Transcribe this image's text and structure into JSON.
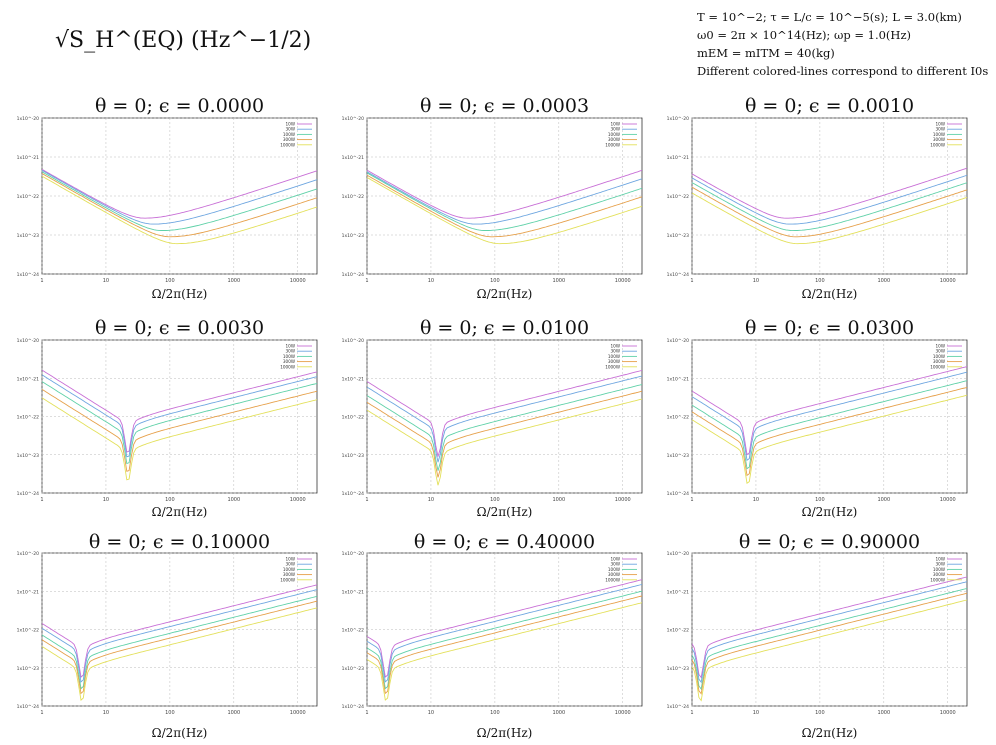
{
  "header": {
    "main_label": "√S_H^(EQ) (Hz^−1/2)",
    "parameters": [
      "T = 10^−2;   τ = L/c = 10^−5(s);   L = 3.0(km)",
      "ω0 = 2π × 10^14(Hz);   ωp = 1.0(Hz)",
      "mEM = mITM = 40(kg)",
      "Different colored-lines correspond to different I0s"
    ]
  },
  "colors": {
    "series": [
      "#c86fd6",
      "#6ea6e0",
      "#5fd1a8",
      "#e6a04a",
      "#e3e05a"
    ]
  },
  "chart_data": [
    {
      "type": "line",
      "title": "θ = 0; ϵ = 0.0000",
      "xlabel": "Ω/2π(Hz)",
      "ylabel": "",
      "xscale": "log",
      "yscale": "log",
      "xlim": [
        1,
        20000
      ],
      "ylim": [
        1e-24,
        1e-20
      ],
      "grid": true,
      "legend_position": "top-right",
      "x_ticks": [
        "1",
        "10",
        "100",
        "1000",
        "10000"
      ],
      "y_ticks": [
        "1x10^-24",
        "1x10^-23",
        "1x10^-22",
        "1x10^-21",
        "1x10^-20"
      ],
      "series": [
        {
          "name": "10W",
          "dip_x": 40,
          "min_y": 2.7e-23
        },
        {
          "name": "30W",
          "dip_x": 55,
          "min_y": 1.9e-23
        },
        {
          "name": "100W",
          "dip_x": 75,
          "min_y": 1.3e-23
        },
        {
          "name": "300W",
          "dip_x": 100,
          "min_y": 9e-24
        },
        {
          "name": "1000W",
          "dip_x": 130,
          "min_y": 6e-24
        }
      ]
    },
    {
      "type": "line",
      "title": "θ = 0; ϵ = 0.0003",
      "xlabel": "Ω/2π(Hz)",
      "ylabel": "",
      "xscale": "log",
      "yscale": "log",
      "xlim": [
        1,
        20000
      ],
      "ylim": [
        1e-24,
        1e-20
      ],
      "grid": true,
      "legend_position": "top-right",
      "x_ticks": [
        "1",
        "10",
        "100",
        "1000",
        "10000"
      ],
      "y_ticks": [
        "1x10^-24",
        "1x10^-23",
        "1x10^-22",
        "1x10^-21",
        "1x10^-20"
      ],
      "series": [
        {
          "name": "10W",
          "dip_x": 38,
          "min_y": 2.7e-23
        },
        {
          "name": "30W",
          "dip_x": 50,
          "min_y": 1.9e-23
        },
        {
          "name": "100W",
          "dip_x": 70,
          "min_y": 1.3e-23
        },
        {
          "name": "300W",
          "dip_x": 90,
          "min_y": 9e-24
        },
        {
          "name": "1000W",
          "dip_x": 120,
          "min_y": 6e-24
        }
      ]
    },
    {
      "type": "line",
      "title": "θ = 0; ϵ = 0.0010",
      "xlabel": "Ω/2π(Hz)",
      "ylabel": "",
      "xscale": "log",
      "yscale": "log",
      "xlim": [
        1,
        20000
      ],
      "ylim": [
        1e-24,
        1e-20
      ],
      "grid": true,
      "legend_position": "top-right",
      "x_ticks": [
        "1",
        "10",
        "100",
        "1000",
        "10000"
      ],
      "y_ticks": [
        "1x10^-24",
        "1x10^-23",
        "1x10^-22",
        "1x10^-21",
        "1x10^-20"
      ],
      "series": [
        {
          "name": "10W",
          "dip_x": 30,
          "min_y": 2.7e-23
        },
        {
          "name": "30W",
          "dip_x": 34,
          "min_y": 1.9e-23
        },
        {
          "name": "100W",
          "dip_x": 38,
          "min_y": 1.3e-23
        },
        {
          "name": "300W",
          "dip_x": 42,
          "min_y": 9e-24
        },
        {
          "name": "1000W",
          "dip_x": 45,
          "min_y": 6e-24
        }
      ]
    },
    {
      "type": "line",
      "title": "θ = 0; ϵ = 0.0030",
      "xlabel": "Ω/2π(Hz)",
      "ylabel": "",
      "xscale": "log",
      "yscale": "log",
      "xlim": [
        1,
        20000
      ],
      "ylim": [
        1e-24,
        1e-20
      ],
      "grid": true,
      "legend_position": "top-right",
      "x_ticks": [
        "1",
        "10",
        "100",
        "1000",
        "10000"
      ],
      "y_ticks": [
        "1x10^-24",
        "1x10^-23",
        "1x10^-22",
        "1x10^-21",
        "1x10^-20"
      ],
      "series": [
        {
          "name": "10W",
          "dip_x": 22,
          "min_y": 1.6e-23
        },
        {
          "name": "30W",
          "dip_x": 22,
          "min_y": 1.2e-23
        },
        {
          "name": "100W",
          "dip_x": 22,
          "min_y": 8e-24
        },
        {
          "name": "300W",
          "dip_x": 22,
          "min_y": 5e-24
        },
        {
          "name": "1000W",
          "dip_x": 22,
          "min_y": 3e-24
        }
      ]
    },
    {
      "type": "line",
      "title": "θ = 0; ϵ = 0.0100",
      "xlabel": "Ω/2π(Hz)",
      "ylabel": "",
      "xscale": "log",
      "yscale": "log",
      "xlim": [
        1,
        20000
      ],
      "ylim": [
        1e-24,
        1e-20
      ],
      "grid": true,
      "legend_position": "top-right",
      "x_ticks": [
        "1",
        "10",
        "100",
        "1000",
        "10000"
      ],
      "y_ticks": [
        "1x10^-24",
        "1x10^-23",
        "1x10^-22",
        "1x10^-21",
        "1x10^-20"
      ],
      "series": [
        {
          "name": "10W",
          "dip_x": 13,
          "min_y": 1.4e-23
        },
        {
          "name": "30W",
          "dip_x": 13,
          "min_y": 1e-23
        },
        {
          "name": "100W",
          "dip_x": 13,
          "min_y": 6e-24
        },
        {
          "name": "300W",
          "dip_x": 13,
          "min_y": 4e-24
        },
        {
          "name": "1000W",
          "dip_x": 13,
          "min_y": 2.5e-24
        }
      ]
    },
    {
      "type": "line",
      "title": "θ = 0; ϵ = 0.0300",
      "xlabel": "Ω/2π(Hz)",
      "ylabel": "",
      "xscale": "log",
      "yscale": "log",
      "xlim": [
        1,
        20000
      ],
      "ylim": [
        1e-24,
        1e-20
      ],
      "grid": true,
      "legend_position": "top-right",
      "x_ticks": [
        "1",
        "10",
        "100",
        "1000",
        "10000"
      ],
      "y_ticks": [
        "1x10^-24",
        "1x10^-23",
        "1x10^-22",
        "1x10^-21",
        "1x10^-20"
      ],
      "series": [
        {
          "name": "10W",
          "dip_x": 7.5,
          "min_y": 1.4e-23
        },
        {
          "name": "30W",
          "dip_x": 7.5,
          "min_y": 1e-23
        },
        {
          "name": "100W",
          "dip_x": 7.5,
          "min_y": 6e-24
        },
        {
          "name": "300W",
          "dip_x": 7.5,
          "min_y": 4e-24
        },
        {
          "name": "1000W",
          "dip_x": 7.5,
          "min_y": 2.5e-24
        }
      ]
    },
    {
      "type": "line",
      "title": "θ = 0; ϵ = 0.10000",
      "xlabel": "Ω/2π(Hz)",
      "ylabel": "",
      "xscale": "log",
      "yscale": "log",
      "xlim": [
        1,
        20000
      ],
      "ylim": [
        1e-24,
        1e-20
      ],
      "grid": true,
      "legend_position": "top-right",
      "x_ticks": [
        "1",
        "10",
        "100",
        "1000",
        "10000"
      ],
      "y_ticks": [
        "1x10^-24",
        "1x10^-23",
        "1x10^-22",
        "1x10^-21",
        "1x10^-20"
      ],
      "series": [
        {
          "name": "10W",
          "dip_x": 4.2,
          "min_y": 8e-24
        },
        {
          "name": "30W",
          "dip_x": 4.2,
          "min_y": 6e-24
        },
        {
          "name": "100W",
          "dip_x": 4.2,
          "min_y": 4e-24
        },
        {
          "name": "300W",
          "dip_x": 4.2,
          "min_y": 3e-24
        },
        {
          "name": "1000W",
          "dip_x": 4.2,
          "min_y": 2e-24
        }
      ]
    },
    {
      "type": "line",
      "title": "θ = 0; ϵ = 0.40000",
      "xlabel": "Ω/2π(Hz)",
      "ylabel": "",
      "xscale": "log",
      "yscale": "log",
      "xlim": [
        1,
        20000
      ],
      "ylim": [
        1e-24,
        1e-20
      ],
      "grid": true,
      "legend_position": "top-right",
      "x_ticks": [
        "1",
        "10",
        "100",
        "1000",
        "10000"
      ],
      "y_ticks": [
        "1x10^-24",
        "1x10^-23",
        "1x10^-22",
        "1x10^-21",
        "1x10^-20"
      ],
      "series": [
        {
          "name": "10W",
          "dip_x": 2.0,
          "min_y": 8e-24
        },
        {
          "name": "30W",
          "dip_x": 2.0,
          "min_y": 6e-24
        },
        {
          "name": "100W",
          "dip_x": 2.0,
          "min_y": 4e-24
        },
        {
          "name": "300W",
          "dip_x": 2.0,
          "min_y": 3e-24
        },
        {
          "name": "1000W",
          "dip_x": 2.0,
          "min_y": 2e-24
        }
      ]
    },
    {
      "type": "line",
      "title": "θ = 0; ϵ = 0.90000",
      "xlabel": "Ω/2π(Hz)",
      "ylabel": "",
      "xscale": "log",
      "yscale": "log",
      "xlim": [
        1,
        20000
      ],
      "ylim": [
        1e-24,
        1e-20
      ],
      "grid": true,
      "legend_position": "top-right",
      "x_ticks": [
        "1",
        "10",
        "100",
        "1000",
        "10000"
      ],
      "y_ticks": [
        "1x10^-24",
        "1x10^-23",
        "1x10^-22",
        "1x10^-21",
        "1x10^-20"
      ],
      "series": [
        {
          "name": "10W",
          "dip_x": 1.35,
          "min_y": 8e-24
        },
        {
          "name": "30W",
          "dip_x": 1.35,
          "min_y": 6e-24
        },
        {
          "name": "100W",
          "dip_x": 1.35,
          "min_y": 4e-24
        },
        {
          "name": "300W",
          "dip_x": 1.35,
          "min_y": 3e-24
        },
        {
          "name": "1000W",
          "dip_x": 1.35,
          "min_y": 2e-24
        }
      ]
    }
  ]
}
